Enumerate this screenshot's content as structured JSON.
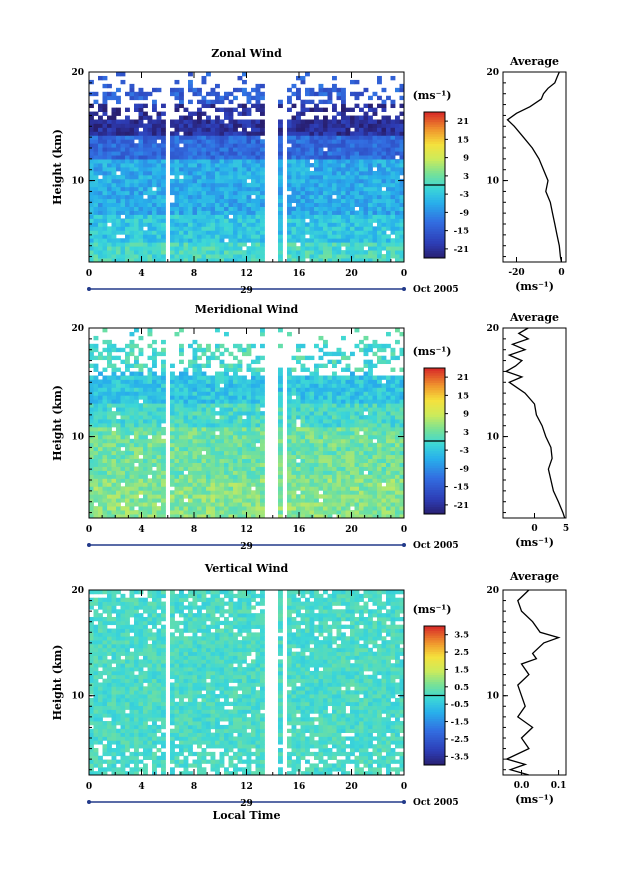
{
  "figure": {
    "date_day": "29",
    "date_month": "Oct 2005",
    "xlabel": "Local Time",
    "xticks": [
      "0",
      "4",
      "8",
      "12",
      "16",
      "20",
      "0"
    ],
    "yticks": [
      "20",
      "10"
    ],
    "ylabel": "Height (km)",
    "cbar_unit": "(ms⁻¹)",
    "avg_unit": "(ms⁻¹)",
    "avg_title": "Average"
  },
  "chart_data": [
    {
      "type": "heatmap",
      "title": "Zonal Wind",
      "xlabel": "",
      "ylabel": "Height (km)",
      "xlim_hours": [
        0,
        24
      ],
      "ylim_km": [
        2.5,
        20
      ],
      "cbar_ticks": [
        "21",
        "15",
        "9",
        "3",
        "-3",
        "-9",
        "-15",
        "-21"
      ],
      "cbar_range": [
        -24,
        24
      ],
      "profile_bands_km": [
        [
          2.5,
          4.5,
          0
        ],
        [
          4.5,
          7,
          -3
        ],
        [
          7,
          12,
          -6
        ],
        [
          12,
          14,
          -13
        ],
        [
          14,
          17,
          -21
        ],
        [
          17,
          20,
          -14
        ]
      ],
      "average": {
        "title": "Average",
        "xticks": [
          "-20",
          "0"
        ],
        "xlim": [
          -26,
          2
        ],
        "height_km": [
          2.5,
          3,
          4,
          5,
          6,
          7,
          8,
          9,
          10,
          11,
          12,
          13,
          14,
          15,
          15.6,
          16.2,
          16.8,
          17.5,
          18,
          18.5,
          19,
          19.5,
          20
        ],
        "value": [
          0,
          -0.5,
          -1,
          -2,
          -3,
          -4,
          -5,
          -7,
          -6,
          -8,
          -10,
          -13,
          -17,
          -21,
          -24,
          -20,
          -14,
          -9,
          -8,
          -6,
          -3,
          -2,
          -1
        ]
      }
    },
    {
      "type": "heatmap",
      "title": "Meridional Wind",
      "xlabel": "",
      "ylabel": "Height (km)",
      "xlim_hours": [
        0,
        24
      ],
      "ylim_km": [
        2.5,
        20
      ],
      "cbar_ticks": [
        "21",
        "15",
        "9",
        "3",
        "-3",
        "-9",
        "-15",
        "-21"
      ],
      "cbar_range": [
        -24,
        24
      ],
      "profile_bands_km": [
        [
          2.5,
          6,
          4.5
        ],
        [
          6,
          11,
          3
        ],
        [
          11,
          13,
          0
        ],
        [
          13,
          16,
          -3
        ],
        [
          16,
          20,
          0
        ]
      ],
      "average": {
        "title": "Average",
        "xticks": [
          "0",
          "5"
        ],
        "xlim": [
          -5,
          5
        ],
        "height_km": [
          2.5,
          3,
          4,
          5,
          6,
          7,
          8,
          9,
          10,
          11,
          12,
          13,
          14,
          15,
          15.5,
          16,
          16.5,
          17,
          17.5,
          18,
          18.5,
          19,
          19.5,
          20
        ],
        "value": [
          4.8,
          4.5,
          3.8,
          3,
          2.6,
          2.2,
          2.8,
          2.6,
          1.8,
          1.2,
          0.3,
          0,
          -1.5,
          -4,
          -2,
          -4.5,
          -3,
          -2,
          -4,
          -1.5,
          -3.5,
          -1,
          -2.5,
          -1
        ]
      }
    },
    {
      "type": "heatmap",
      "title": "Vertical Wind",
      "xlabel": "Local Time",
      "ylabel": "Height (km)",
      "xlim_hours": [
        0,
        24
      ],
      "ylim_km": [
        2.5,
        20
      ],
      "cbar_ticks": [
        "3.5",
        "2.5",
        "1.5",
        "0.5",
        "-0.5",
        "-1.5",
        "-2.5",
        "-3.5"
      ],
      "cbar_range": [
        -4,
        4
      ],
      "profile_bands_km": [
        [
          2.5,
          20,
          0.05
        ]
      ],
      "average": {
        "title": "Average",
        "xticks": [
          "0.0",
          "0.1"
        ],
        "xlim": [
          -0.05,
          0.12
        ],
        "height_km": [
          2.5,
          3,
          3.5,
          4,
          5,
          6,
          7,
          8,
          9,
          10,
          11,
          12,
          13,
          13.5,
          14,
          15,
          15.5,
          16,
          17,
          18,
          19,
          20
        ],
        "value": [
          0.02,
          -0.03,
          0.01,
          -0.04,
          0.02,
          0.0,
          0.03,
          -0.01,
          0.01,
          0.0,
          -0.01,
          0.02,
          0.0,
          0.04,
          0.03,
          0.06,
          0.1,
          0.05,
          0.03,
          0.0,
          -0.01,
          0.02
        ]
      }
    }
  ]
}
